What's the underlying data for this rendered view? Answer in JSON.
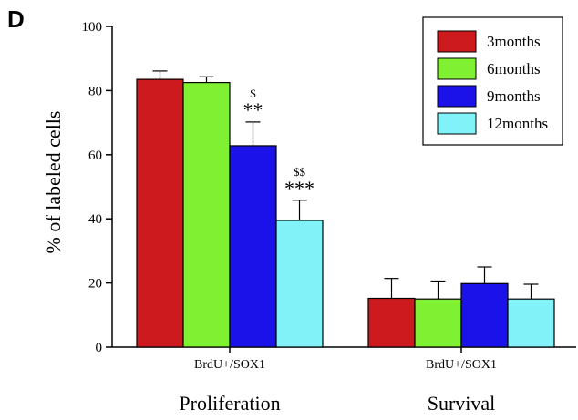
{
  "panel_label": "D",
  "chart_data": {
    "type": "bar",
    "title": "",
    "ylabel": "% of labeled cells",
    "ylim": [
      0,
      100
    ],
    "yticks": [
      0,
      20,
      40,
      60,
      80,
      100
    ],
    "grid": false,
    "legend_position": "top-right",
    "categories": [
      "BrdU+/SOX1",
      "BrdU+/SOX1"
    ],
    "groups": [
      "Proliferation",
      "Survival"
    ],
    "series": [
      {
        "name": "3months",
        "color": "#cc1a1f",
        "values": [
          83.5,
          15.2
        ],
        "errors": [
          2.6,
          6.2
        ]
      },
      {
        "name": "6months",
        "color": "#80f032",
        "values": [
          82.5,
          15.0
        ],
        "errors": [
          1.8,
          5.6
        ]
      },
      {
        "name": "9months",
        "color": "#1a12e8",
        "values": [
          62.8,
          19.8
        ],
        "errors": [
          7.4,
          5.2
        ]
      },
      {
        "name": "12months",
        "color": "#80f2f8",
        "values": [
          39.5,
          15.0
        ],
        "errors": [
          6.3,
          4.6
        ]
      }
    ],
    "annotations": [
      {
        "category_index": 0,
        "series_index": 2,
        "dollar": "$",
        "stars": "**"
      },
      {
        "category_index": 0,
        "series_index": 3,
        "dollar": "$$",
        "stars": "***"
      }
    ]
  }
}
